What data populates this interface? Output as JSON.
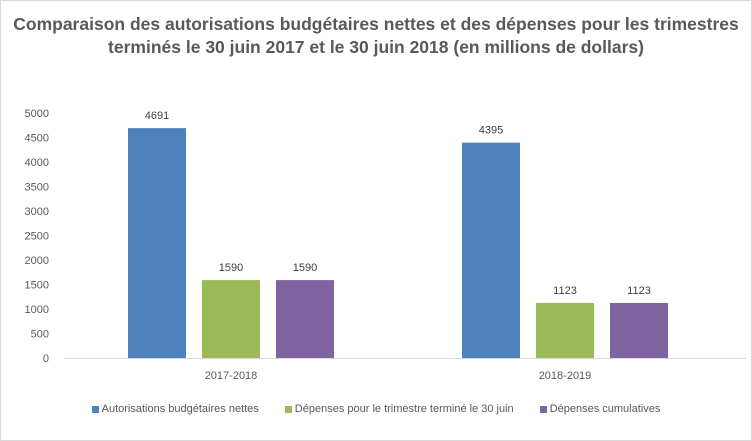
{
  "chart_data": {
    "type": "bar",
    "title": "Comparaison des autorisations budgétaires nettes et des dépenses pour les trimestres terminés le 30 juin 2017 et le 30 juin 2018 (en millions de dollars)",
    "categories": [
      "2017-2018",
      "2018-2019"
    ],
    "series": [
      {
        "name": "Autorisations budgétaires nettes",
        "values": [
          4691,
          4395
        ],
        "color": "#4f81bd"
      },
      {
        "name": "Dépenses pour le trimestre terminé le 30 juin",
        "values": [
          1590,
          1123
        ],
        "color": "#9bbb59"
      },
      {
        "name": "Dépenses cumulatives",
        "values": [
          1590,
          1123
        ],
        "color": "#8064a2"
      }
    ],
    "ylim": [
      0,
      5000
    ],
    "yticks": [
      0,
      500,
      1000,
      1500,
      2000,
      2500,
      3000,
      3500,
      4000,
      4500,
      5000
    ],
    "xlabel": "",
    "ylabel": "",
    "grid": false,
    "legend": "bottom"
  }
}
